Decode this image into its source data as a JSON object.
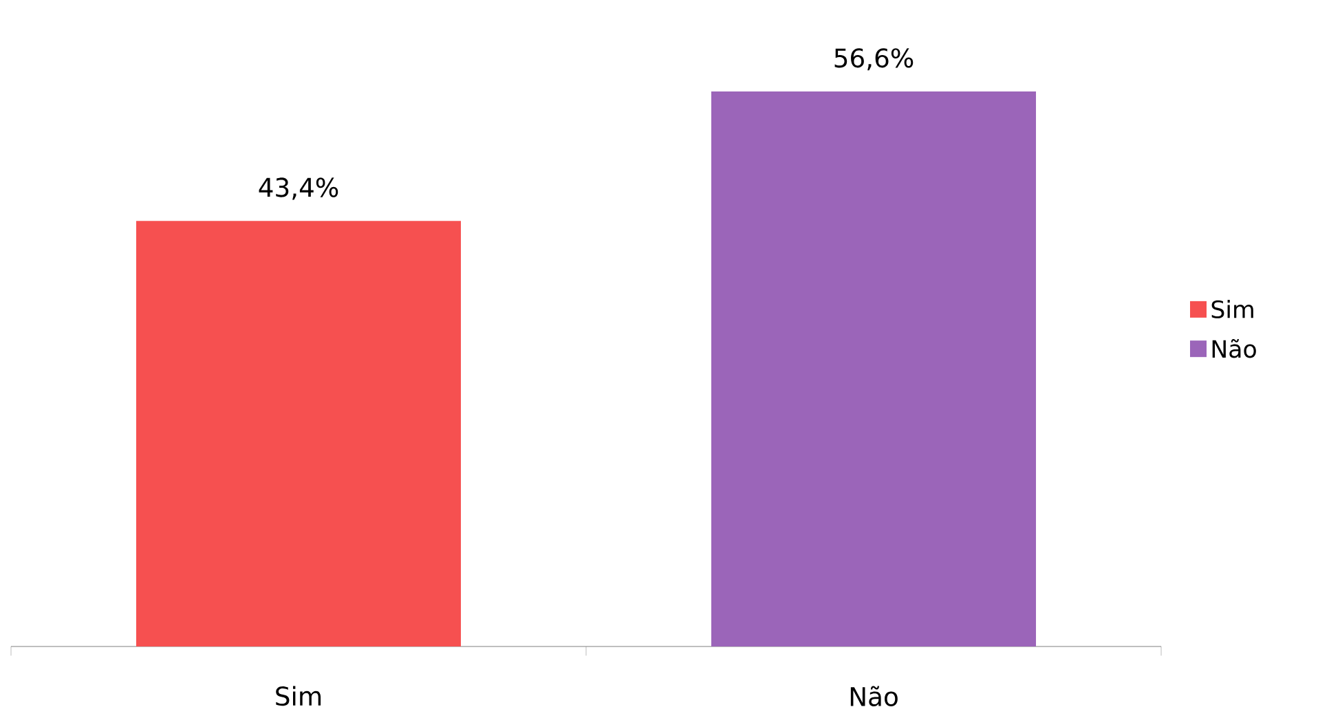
{
  "chart_data": {
    "type": "bar",
    "categories": [
      "Sim",
      "Não"
    ],
    "series": [
      {
        "name": "Sim",
        "color": "#f65050",
        "values": [
          43.4,
          null
        ],
        "value_labels": [
          "43,4%",
          null
        ]
      },
      {
        "name": "Não",
        "color": "#9b65b9",
        "values": [
          null,
          56.6
        ],
        "value_labels": [
          null,
          "56,6%"
        ]
      }
    ],
    "legend": "right"
  }
}
